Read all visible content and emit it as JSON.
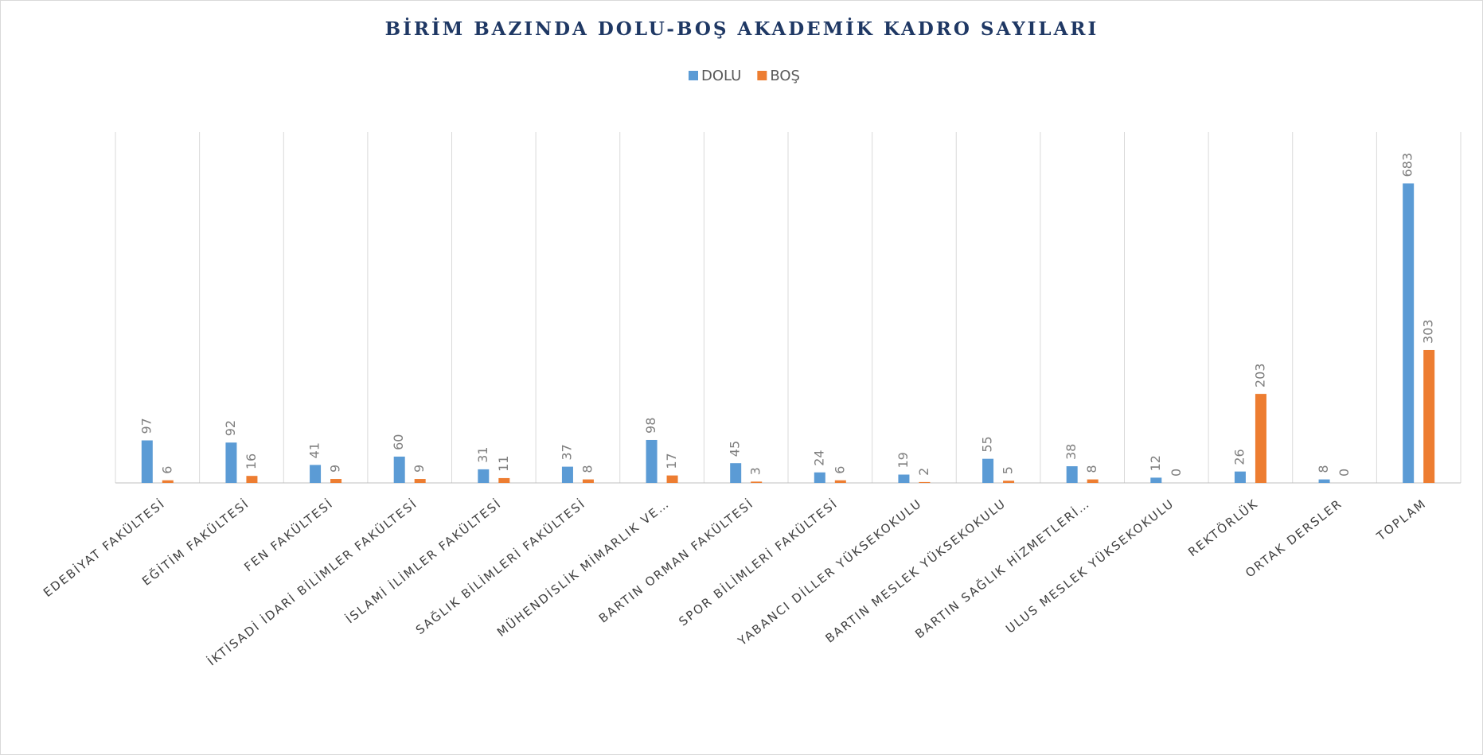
{
  "chart_data": {
    "type": "bar",
    "title": "BİRİM BAZINDA DOLU-BOŞ AKADEMİK KADRO SAYILARI",
    "categories": [
      "EDEBİYAT FAKÜLTESİ",
      "EĞİTİM FAKÜLTESİ",
      "FEN FAKÜLTESİ",
      "İKTİSADİ İDARİ BİLİMLER FAKÜLTESİ",
      "İSLAMİ İLİMLER FAKÜLTESİ",
      "SAĞLIK BİLİMLERİ FAKÜLTESİ",
      "MÜHENDİSLİK MİMARLIK VE…",
      "BARTIN ORMAN FAKÜLTESİ",
      "SPOR BİLİMLERİ FAKÜLTESİ",
      "YABANCI DİLLER YÜKSEKOKULU",
      "BARTIN MESLEK YÜKSEKOKULU",
      "BARTIN SAĞLIK HİZMETLERİ…",
      "ULUS MESLEK YÜKSEKOKULU",
      "REKTÖRLÜK",
      "ORTAK DERSLER",
      "TOPLAM"
    ],
    "series": [
      {
        "name": "DOLU",
        "color": "#5b9bd5",
        "values": [
          97,
          92,
          41,
          60,
          31,
          37,
          98,
          45,
          24,
          19,
          55,
          38,
          12,
          26,
          8,
          683
        ]
      },
      {
        "name": "BOŞ",
        "color": "#ed7d31",
        "values": [
          6,
          16,
          9,
          9,
          11,
          8,
          17,
          3,
          6,
          2,
          5,
          8,
          0,
          203,
          0,
          303
        ]
      }
    ],
    "ylim": [
      0,
      800
    ],
    "legend": "top"
  }
}
